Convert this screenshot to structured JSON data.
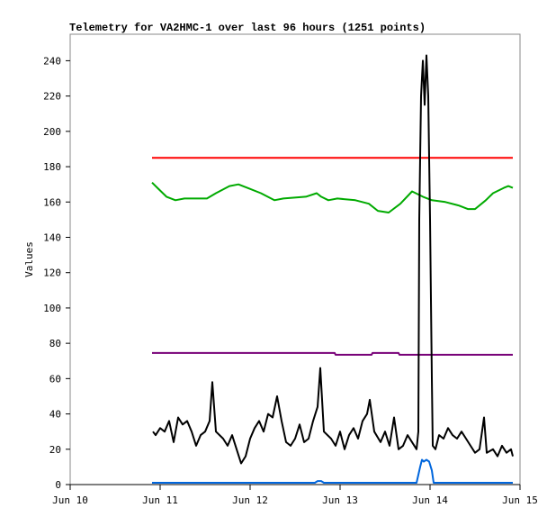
{
  "chart_data": {
    "type": "line",
    "title": "Telemetry for VA2HMC-1 over last 96 hours (1251 points)",
    "xlabel": "",
    "ylabel": "Values",
    "xlim_days_from_jun10": [
      0,
      5
    ],
    "ylim": [
      0,
      255
    ],
    "x_ticks": [
      {
        "label": "Jun 10",
        "day": 0
      },
      {
        "label": "Jun 11",
        "day": 1
      },
      {
        "label": "Jun 12",
        "day": 2
      },
      {
        "label": "Jun 13",
        "day": 3
      },
      {
        "label": "Jun 14",
        "day": 4
      },
      {
        "label": "Jun 15",
        "day": 5
      }
    ],
    "y_ticks": [
      0,
      20,
      40,
      60,
      80,
      100,
      120,
      140,
      160,
      180,
      200,
      220,
      240
    ],
    "grid": false,
    "series": [
      {
        "name": "red",
        "color": "#ff0000",
        "x": [
          0.91,
          4.92
        ],
        "y": [
          185,
          185
        ]
      },
      {
        "name": "green",
        "color": "#00aa00",
        "x": [
          0.91,
          0.97,
          1.07,
          1.17,
          1.27,
          1.52,
          1.62,
          1.77,
          1.87,
          1.97,
          2.12,
          2.27,
          2.37,
          2.62,
          2.74,
          2.79,
          2.87,
          2.97,
          3.17,
          3.32,
          3.42,
          3.54,
          3.67,
          3.8,
          3.92,
          4.02,
          4.17,
          4.32,
          4.42,
          4.5,
          4.62,
          4.7,
          4.82,
          4.87,
          4.92
        ],
        "y": [
          171,
          168,
          163,
          161,
          162,
          162,
          165,
          169,
          170,
          168,
          165,
          161,
          162,
          163,
          165,
          163,
          161,
          162,
          161,
          159,
          155,
          154,
          159,
          166,
          163,
          161,
          160,
          158,
          156,
          156,
          161,
          165,
          168,
          169,
          168
        ]
      },
      {
        "name": "purple",
        "color": "#770077",
        "x": [
          0.91,
          2.94,
          2.95,
          3.35,
          3.36,
          3.65,
          3.66,
          4.92
        ],
        "y": [
          74.5,
          74.5,
          73.5,
          73.5,
          74.5,
          74.5,
          73.5,
          73.5
        ]
      },
      {
        "name": "black",
        "color": "#000000",
        "x": [
          0.92,
          0.95,
          1.0,
          1.05,
          1.1,
          1.15,
          1.2,
          1.25,
          1.3,
          1.35,
          1.4,
          1.45,
          1.5,
          1.55,
          1.58,
          1.62,
          1.7,
          1.75,
          1.8,
          1.85,
          1.9,
          1.95,
          2.0,
          2.05,
          2.1,
          2.15,
          2.2,
          2.25,
          2.3,
          2.35,
          2.4,
          2.45,
          2.5,
          2.55,
          2.6,
          2.65,
          2.7,
          2.75,
          2.78,
          2.82,
          2.9,
          2.95,
          3.0,
          3.05,
          3.1,
          3.15,
          3.2,
          3.25,
          3.3,
          3.33,
          3.38,
          3.45,
          3.5,
          3.55,
          3.6,
          3.65,
          3.7,
          3.75,
          3.8,
          3.85,
          3.87,
          3.88,
          3.9,
          3.92,
          3.94,
          3.96,
          3.98,
          4.0,
          4.02,
          4.03,
          4.06,
          4.1,
          4.15,
          4.2,
          4.25,
          4.3,
          4.35,
          4.4,
          4.45,
          4.5,
          4.55,
          4.6,
          4.63,
          4.7,
          4.75,
          4.8,
          4.85,
          4.9,
          4.92
        ],
        "y": [
          30,
          28,
          32,
          30,
          36,
          24,
          38,
          34,
          36,
          30,
          22,
          28,
          30,
          36,
          58,
          30,
          26,
          22,
          28,
          20,
          12,
          16,
          26,
          32,
          36,
          30,
          40,
          38,
          50,
          36,
          24,
          22,
          26,
          34,
          24,
          26,
          36,
          44,
          66,
          30,
          26,
          22,
          30,
          20,
          28,
          32,
          26,
          36,
          40,
          48,
          30,
          24,
          30,
          22,
          38,
          20,
          22,
          28,
          24,
          20,
          30,
          150,
          220,
          240,
          215,
          243,
          220,
          150,
          60,
          22,
          20,
          28,
          26,
          32,
          28,
          26,
          30,
          26,
          22,
          18,
          20,
          38,
          18,
          20,
          16,
          22,
          18,
          20,
          16
        ]
      },
      {
        "name": "blue",
        "color": "#0066dd",
        "x": [
          0.91,
          2.72,
          2.75,
          2.79,
          2.82,
          3.85,
          3.89,
          3.91,
          3.93,
          3.96,
          3.99,
          4.02,
          4.04,
          4.92
        ],
        "y": [
          1,
          1,
          2,
          2,
          1,
          1,
          10,
          14,
          13,
          14,
          13,
          8,
          1,
          1
        ]
      }
    ]
  }
}
